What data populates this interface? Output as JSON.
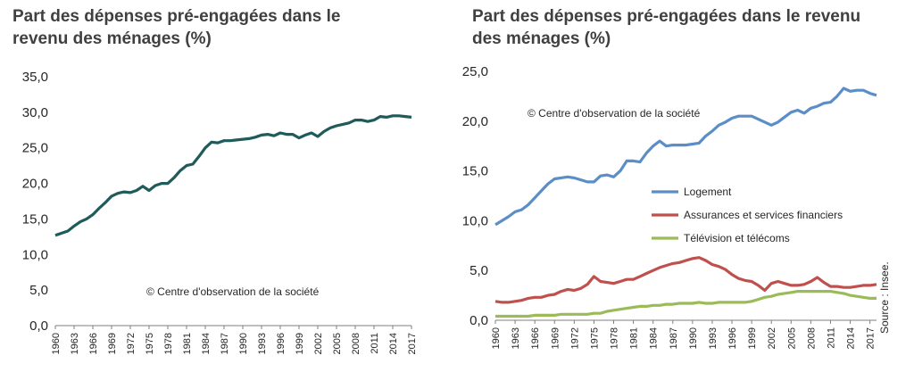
{
  "source": "Source : Insee.",
  "colors": {
    "left_line": "#1f5b5b",
    "logement": "#5b8ec7",
    "assurances": "#c0504d",
    "television": "#9bbb59",
    "axis": "#7f7f7f",
    "text": "#262626"
  },
  "chart_data": [
    {
      "type": "line",
      "title": "Part des dépenses pré-engagées dans le revenu des ménages (%)",
      "watermark": "© Centre d'observation de la  société",
      "ylim": [
        0,
        35
      ],
      "yticks": [
        0,
        5,
        10,
        15,
        20,
        25,
        30,
        35
      ],
      "ytick_labels": [
        "0,0",
        "5,0",
        "10,0",
        "15,0",
        "20,0",
        "25,0",
        "30,0",
        "35,0"
      ],
      "xlim": [
        1960,
        2017
      ],
      "xticks": [
        1960,
        1963,
        1966,
        1969,
        1972,
        1975,
        1978,
        1981,
        1984,
        1987,
        1990,
        1993,
        1996,
        1999,
        2002,
        2005,
        2008,
        2011,
        2014,
        2017
      ],
      "series": [
        {
          "x": [
            1960,
            1961,
            1962,
            1963,
            1964,
            1965,
            1966,
            1967,
            1968,
            1969,
            1970,
            1971,
            1972,
            1973,
            1974,
            1975,
            1976,
            1977,
            1978,
            1979,
            1980,
            1981,
            1982,
            1983,
            1984,
            1985,
            1986,
            1987,
            1988,
            1989,
            1990,
            1991,
            1992,
            1993,
            1994,
            1995,
            1996,
            1997,
            1998,
            1999,
            2000,
            2001,
            2002,
            2003,
            2004,
            2005,
            2006,
            2007,
            2008,
            2009,
            2010,
            2011,
            2012,
            2013,
            2014,
            2015,
            2016,
            2017
          ],
          "values": [
            12.7,
            13.0,
            13.3,
            14.0,
            14.6,
            15.0,
            15.6,
            16.5,
            17.3,
            18.2,
            18.6,
            18.8,
            18.7,
            19.0,
            19.6,
            19.0,
            19.7,
            20.0,
            20.0,
            20.8,
            21.8,
            22.5,
            22.7,
            23.8,
            25.0,
            25.8,
            25.7,
            26.0,
            26.0,
            26.1,
            26.2,
            26.3,
            26.5,
            26.8,
            26.9,
            26.7,
            27.1,
            26.9,
            26.9,
            26.4,
            26.8,
            27.1,
            26.6,
            27.3,
            27.8,
            28.1,
            28.3,
            28.5,
            28.9,
            28.9,
            28.7,
            28.9,
            29.4,
            29.3,
            29.5,
            29.5,
            29.4,
            29.3
          ]
        }
      ]
    },
    {
      "type": "line",
      "title": "Part des dépenses pré-engagées dans le revenu des ménages (%)",
      "watermark": "© Centre d'observation de la  société",
      "ylim": [
        0,
        25
      ],
      "yticks": [
        0,
        5,
        10,
        15,
        20,
        25
      ],
      "ytick_labels": [
        "0,0",
        "5,0",
        "10,0",
        "15,0",
        "20,0",
        "25,0"
      ],
      "xlim": [
        1960,
        2018
      ],
      "xticks": [
        1960,
        1963,
        1966,
        1969,
        1972,
        1975,
        1978,
        1981,
        1984,
        1987,
        1990,
        1993,
        1996,
        1999,
        2002,
        2005,
        2008,
        2011,
        2014,
        2017
      ],
      "legend_position": "middle-right",
      "series": [
        {
          "name": "Logement",
          "x": [
            1960,
            1961,
            1962,
            1963,
            1964,
            1965,
            1966,
            1967,
            1968,
            1969,
            1970,
            1971,
            1972,
            1973,
            1974,
            1975,
            1976,
            1977,
            1978,
            1979,
            1980,
            1981,
            1982,
            1983,
            1984,
            1985,
            1986,
            1987,
            1988,
            1989,
            1990,
            1991,
            1992,
            1993,
            1994,
            1995,
            1996,
            1997,
            1998,
            1999,
            2000,
            2001,
            2002,
            2003,
            2004,
            2005,
            2006,
            2007,
            2008,
            2009,
            2010,
            2011,
            2012,
            2013,
            2014,
            2015,
            2016,
            2017,
            2018
          ],
          "values": [
            9.6,
            10.0,
            10.4,
            10.9,
            11.1,
            11.6,
            12.3,
            13.0,
            13.7,
            14.2,
            14.3,
            14.4,
            14.3,
            14.1,
            13.9,
            13.9,
            14.5,
            14.6,
            14.4,
            15.0,
            16.0,
            16.0,
            15.9,
            16.8,
            17.5,
            18.0,
            17.5,
            17.6,
            17.6,
            17.6,
            17.7,
            17.8,
            18.5,
            19.0,
            19.6,
            19.9,
            20.3,
            20.5,
            20.5,
            20.5,
            20.2,
            19.9,
            19.6,
            19.9,
            20.4,
            20.9,
            21.1,
            20.8,
            21.3,
            21.5,
            21.8,
            21.9,
            22.5,
            23.3,
            23.0,
            23.1,
            23.1,
            22.8,
            22.6
          ]
        },
        {
          "name": "Assurances et services financiers",
          "x": [
            1960,
            1961,
            1962,
            1963,
            1964,
            1965,
            1966,
            1967,
            1968,
            1969,
            1970,
            1971,
            1972,
            1973,
            1974,
            1975,
            1976,
            1977,
            1978,
            1979,
            1980,
            1981,
            1982,
            1983,
            1984,
            1985,
            1986,
            1987,
            1988,
            1989,
            1990,
            1991,
            1992,
            1993,
            1994,
            1995,
            1996,
            1997,
            1998,
            1999,
            2000,
            2001,
            2002,
            2003,
            2004,
            2005,
            2006,
            2007,
            2008,
            2009,
            2010,
            2011,
            2012,
            2013,
            2014,
            2015,
            2016,
            2017,
            2018
          ],
          "values": [
            1.9,
            1.8,
            1.8,
            1.9,
            2.0,
            2.2,
            2.3,
            2.3,
            2.5,
            2.6,
            2.9,
            3.1,
            3.0,
            3.2,
            3.6,
            4.4,
            3.9,
            3.8,
            3.7,
            3.9,
            4.1,
            4.1,
            4.4,
            4.7,
            5.0,
            5.3,
            5.5,
            5.7,
            5.8,
            6.0,
            6.2,
            6.3,
            6.0,
            5.6,
            5.4,
            5.1,
            4.6,
            4.2,
            4.0,
            3.9,
            3.5,
            3.0,
            3.7,
            3.9,
            3.7,
            3.5,
            3.5,
            3.6,
            3.9,
            4.3,
            3.8,
            3.4,
            3.4,
            3.3,
            3.3,
            3.4,
            3.5,
            3.5,
            3.6
          ]
        },
        {
          "name": "Télévision et télécoms",
          "x": [
            1960,
            1961,
            1962,
            1963,
            1964,
            1965,
            1966,
            1967,
            1968,
            1969,
            1970,
            1971,
            1972,
            1973,
            1974,
            1975,
            1976,
            1977,
            1978,
            1979,
            1980,
            1981,
            1982,
            1983,
            1984,
            1985,
            1986,
            1987,
            1988,
            1989,
            1990,
            1991,
            1992,
            1993,
            1994,
            1995,
            1996,
            1997,
            1998,
            1999,
            2000,
            2001,
            2002,
            2003,
            2004,
            2005,
            2006,
            2007,
            2008,
            2009,
            2010,
            2011,
            2012,
            2013,
            2014,
            2015,
            2016,
            2017,
            2018
          ],
          "values": [
            0.4,
            0.4,
            0.4,
            0.4,
            0.4,
            0.4,
            0.5,
            0.5,
            0.5,
            0.5,
            0.6,
            0.6,
            0.6,
            0.6,
            0.6,
            0.7,
            0.7,
            0.9,
            1.0,
            1.1,
            1.2,
            1.3,
            1.4,
            1.4,
            1.5,
            1.5,
            1.6,
            1.6,
            1.7,
            1.7,
            1.7,
            1.8,
            1.7,
            1.7,
            1.8,
            1.8,
            1.8,
            1.8,
            1.8,
            1.9,
            2.1,
            2.3,
            2.4,
            2.6,
            2.7,
            2.8,
            2.9,
            2.9,
            2.9,
            2.9,
            2.9,
            2.9,
            2.8,
            2.7,
            2.5,
            2.4,
            2.3,
            2.2,
            2.2
          ]
        }
      ]
    }
  ]
}
